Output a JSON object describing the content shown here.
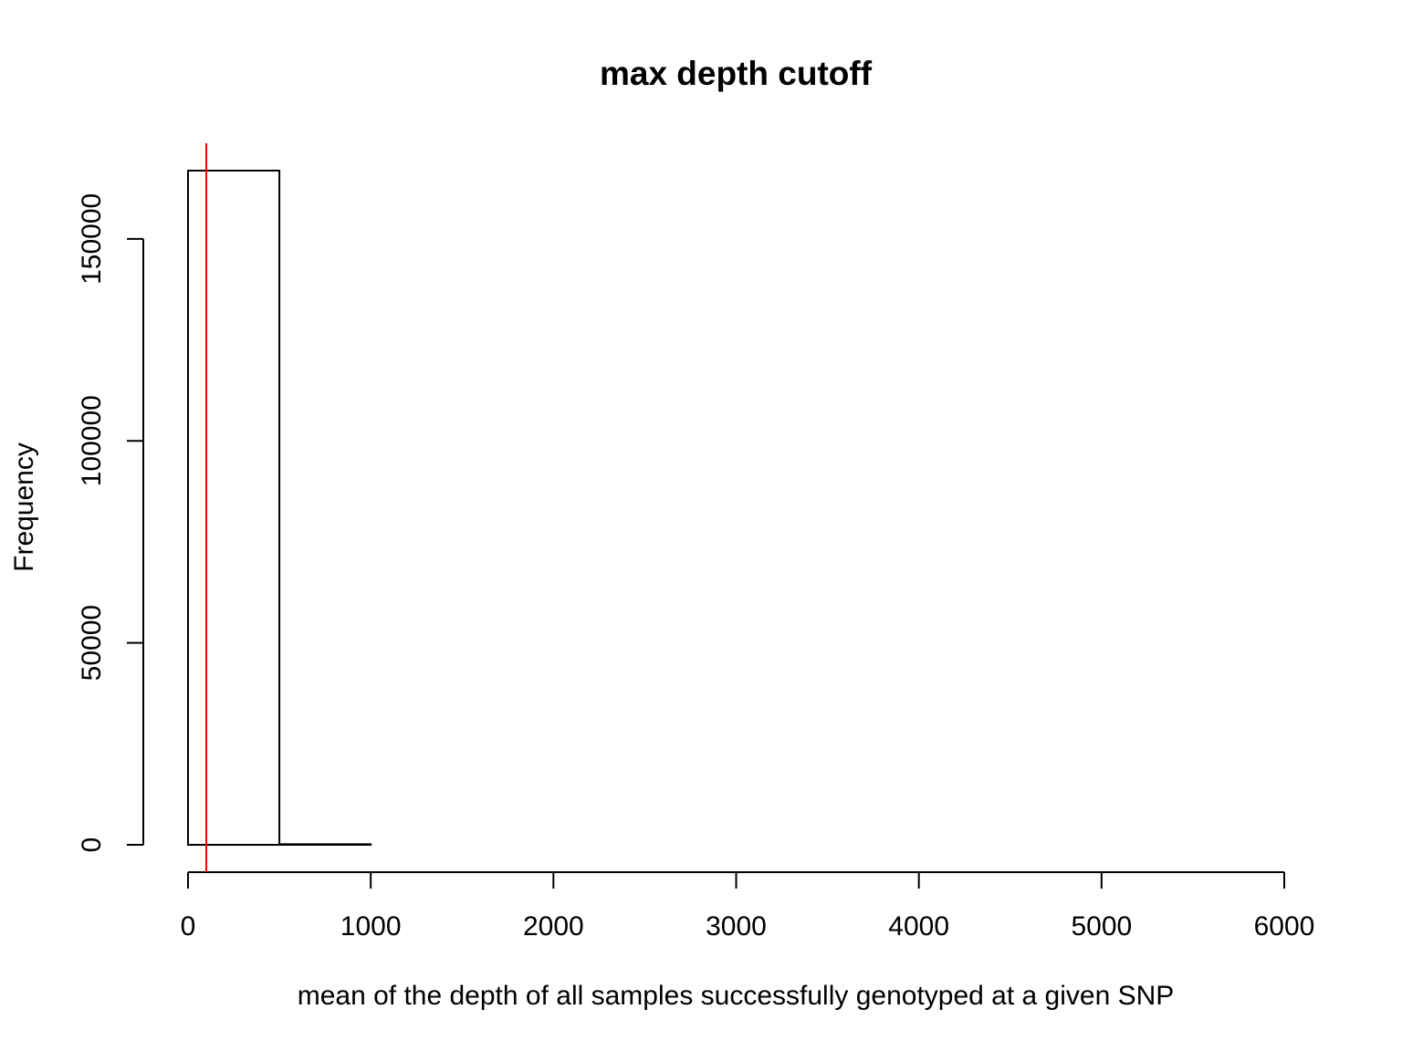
{
  "chart_data": {
    "type": "bar",
    "title": "max depth cutoff",
    "xlabel": "mean of the depth of all samples successfully genotyped at a given SNP",
    "ylabel": "Frequency",
    "bin_edges": [
      0,
      500,
      1000,
      1500,
      2000,
      2500,
      3000,
      3500,
      4000,
      4500,
      5000,
      5500,
      6000
    ],
    "values": [
      166900,
      150,
      0,
      0,
      0,
      0,
      0,
      0,
      0,
      0,
      0,
      0
    ],
    "xlim": [
      0,
      6000
    ],
    "ylim": [
      0,
      166900
    ],
    "x_ticks": [
      0,
      1000,
      2000,
      3000,
      4000,
      5000,
      6000
    ],
    "y_ticks": [
      0,
      50000,
      100000,
      150000
    ],
    "cutoff_line": {
      "x": 100,
      "color": "#ff0000"
    },
    "bar_fill": "#ffffff",
    "bar_stroke": "#000000",
    "grid": false,
    "legend": "none"
  }
}
